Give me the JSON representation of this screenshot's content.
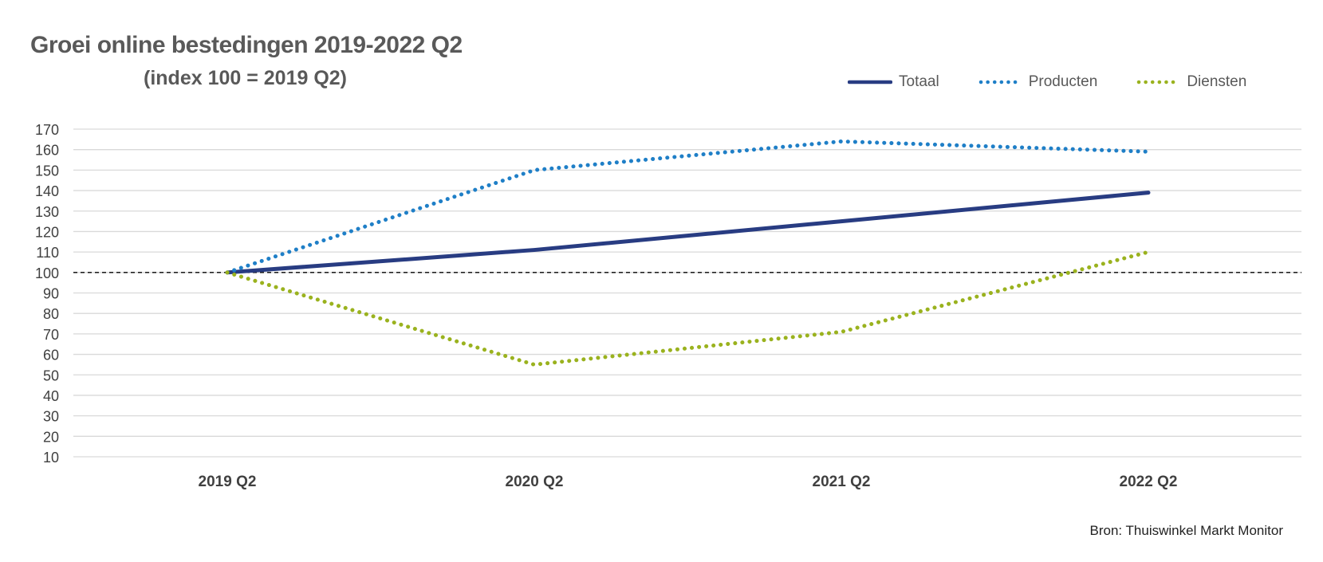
{
  "chart_data": {
    "type": "line",
    "title": "Groei online bestedingen 2019-2022 Q2",
    "subtitle": "(index 100 = 2019 Q2)",
    "categories": [
      "2019 Q2",
      "2020 Q2",
      "2021 Q2",
      "2022 Q2"
    ],
    "ylim": [
      10,
      170
    ],
    "yticks": [
      170,
      160,
      150,
      140,
      130,
      120,
      110,
      100,
      90,
      80,
      70,
      60,
      50,
      40,
      30,
      20,
      10
    ],
    "grid": true,
    "reference_line": 100,
    "legend_position": "top-right",
    "series": [
      {
        "name": "Totaal",
        "values": [
          100,
          111,
          125,
          139
        ],
        "color": "#283c82",
        "style": "solid"
      },
      {
        "name": "Producten",
        "values": [
          100,
          150,
          164,
          159
        ],
        "color": "#1f7fc7",
        "style": "dotted"
      },
      {
        "name": "Diensten",
        "values": [
          100,
          55,
          71,
          110
        ],
        "color": "#9ab21e",
        "style": "dotted"
      }
    ],
    "source": "Bron: Thuiswinkel Markt Monitor"
  }
}
